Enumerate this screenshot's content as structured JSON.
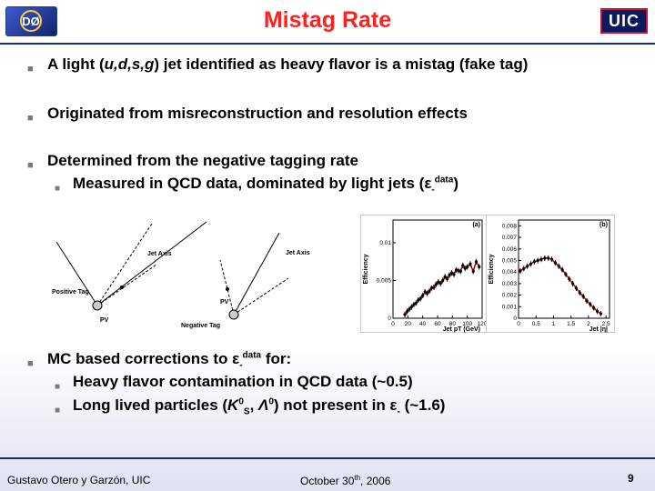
{
  "header": {
    "title": "Mistag Rate",
    "logo_left": "DØ",
    "logo_right": "UIC"
  },
  "bullets": [
    {
      "pre": "A light (",
      "italic": "u,d,s,g",
      "post": ") jet identified as heavy flavor is a mistag (fake tag)"
    },
    {
      "text": "Originated from misreconstruction and resolution effects"
    },
    {
      "text": "Determined from the negative tagging rate",
      "sub": {
        "pre": "Measured in QCD data, dominated by light jets (",
        "eps": "ε",
        "epsSub": "-",
        "epsSup": "data",
        "post": ")"
      }
    },
    {
      "pre": "MC based corrections to ",
      "eps": "ε",
      "epsSub": "-",
      "epsSup": "data",
      "post": " for:"
    }
  ],
  "sub4": [
    {
      "text": "Heavy flavor contamination in QCD data (~0.5)"
    },
    {
      "pre": "Long lived particles (",
      "k": "K",
      "kSup": "0",
      "kSub": "S",
      "sep": ", ",
      "lam": "Λ",
      "lamSup": "0",
      "post": ") not present in ",
      "eps": "ε",
      "epsSub": "-",
      "end": " (~1.6)"
    }
  ],
  "diagram": {
    "jet_axis_1": "Jet Axis",
    "jet_axis_2": "Jet Axis",
    "positive_tag": "Positive Tag",
    "negative_tag": "Negative Tag",
    "pv1": "PV",
    "pv2": "PV"
  },
  "chart_data": [
    {
      "type": "scatter",
      "panel": "(a)",
      "ylabel": "Efficiency",
      "xlabel": "Jet pT (GeV)",
      "xticks": [
        "0",
        "20",
        "40",
        "60",
        "80",
        "100",
        "120"
      ],
      "yticks": [
        "0",
        "0.005",
        "0.01"
      ],
      "xlim": [
        0,
        120
      ],
      "ylim": [
        0,
        0.013
      ],
      "x": [
        16,
        19,
        22,
        25,
        28,
        31,
        34,
        37,
        40,
        43,
        46,
        49,
        52,
        55,
        58,
        61,
        64,
        67,
        70,
        73,
        76,
        79,
        82,
        85,
        88,
        91,
        94,
        97,
        100,
        104,
        108,
        112,
        116
      ],
      "y": [
        0.0005,
        0.0009,
        0.0012,
        0.0015,
        0.0018,
        0.002,
        0.0024,
        0.0026,
        0.003,
        0.0035,
        0.0033,
        0.0036,
        0.004,
        0.0041,
        0.0045,
        0.0048,
        0.0046,
        0.005,
        0.0055,
        0.0052,
        0.0057,
        0.006,
        0.0058,
        0.0064,
        0.0063,
        0.0062,
        0.007,
        0.0066,
        0.0068,
        0.0072,
        0.0062,
        0.0075,
        0.0068
      ]
    },
    {
      "type": "scatter",
      "panel": "(b)",
      "ylabel": "Efficiency",
      "xlabel": "Jet |η|",
      "xticks": [
        "0",
        "0.5",
        "1",
        "1.5",
        "2",
        "2.5"
      ],
      "yticks": [
        "0",
        "0.001",
        "0.002",
        "0.003",
        "0.004",
        "0.005",
        "0.006",
        "0.007",
        "0.008"
      ],
      "xlim": [
        0,
        2.6
      ],
      "ylim": [
        0,
        0.0085
      ],
      "x": [
        0.05,
        0.15,
        0.25,
        0.35,
        0.45,
        0.55,
        0.65,
        0.75,
        0.85,
        0.95,
        1.05,
        1.15,
        1.25,
        1.35,
        1.45,
        1.55,
        1.65,
        1.75,
        1.85,
        1.95,
        2.05,
        2.15,
        2.25,
        2.35
      ],
      "y": [
        0.0041,
        0.0043,
        0.0045,
        0.0047,
        0.0049,
        0.005,
        0.0051,
        0.0052,
        0.0052,
        0.0051,
        0.0048,
        0.0045,
        0.0042,
        0.0038,
        0.0034,
        0.003,
        0.0026,
        0.0022,
        0.0019,
        0.0015,
        0.0012,
        0.0009,
        0.0006,
        0.0004
      ]
    }
  ],
  "footer": {
    "author": "Gustavo Otero y Garzón, UIC",
    "date_pre": "October 30",
    "date_sup": "th",
    "date_post": ", 2006",
    "page": "9"
  }
}
